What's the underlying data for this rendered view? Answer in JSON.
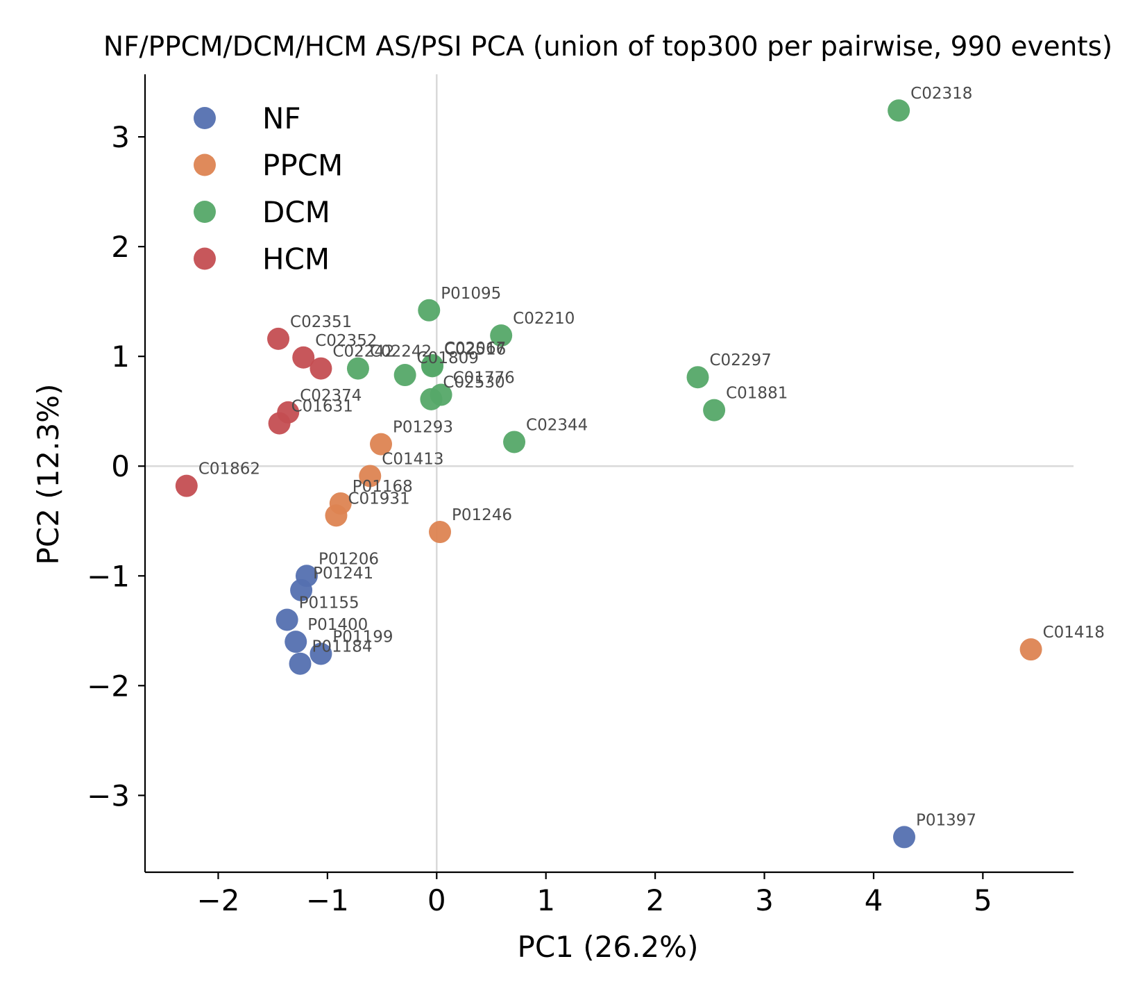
{
  "chart_data": {
    "type": "scatter",
    "title": "NF/PPCM/DCM/HCM AS/PSI PCA (union of top300 per pairwise, 990 events)",
    "xlabel": "PC1 (26.2%)",
    "ylabel": "PC2 (12.3%)",
    "xlim": [
      -2.67,
      5.83
    ],
    "ylim": [
      -3.7,
      3.57
    ],
    "xticks": [
      -2,
      -1,
      0,
      1,
      2,
      3,
      4,
      5
    ],
    "xtick_labels": [
      "−2",
      "−1",
      "0",
      "1",
      "2",
      "3",
      "4",
      "5"
    ],
    "yticks": [
      -3,
      -2,
      -1,
      0,
      1,
      2,
      3
    ],
    "ytick_labels": [
      "−3",
      "−2",
      "−1",
      "0",
      "1",
      "2",
      "3"
    ],
    "grid": false,
    "reference_lines": {
      "x": 0,
      "y": 0,
      "color": "#d9d9d9"
    },
    "legend_position": "top-left",
    "series": [
      {
        "name": "NF",
        "color": "#5470b0",
        "points": [
          {
            "label": "P01206",
            "x": -1.19,
            "y": -1.0
          },
          {
            "label": "P01241",
            "x": -1.24,
            "y": -1.13
          },
          {
            "label": "P01155",
            "x": -1.37,
            "y": -1.4
          },
          {
            "label": "P01400",
            "x": -1.29,
            "y": -1.6
          },
          {
            "label": "P01199",
            "x": -1.06,
            "y": -1.71
          },
          {
            "label": "P01184",
            "x": -1.25,
            "y": -1.8
          },
          {
            "label": "P01397",
            "x": 4.28,
            "y": -3.38
          }
        ]
      },
      {
        "name": "PPCM",
        "color": "#dd8452",
        "points": [
          {
            "label": "P01293",
            "x": -0.51,
            "y": 0.2
          },
          {
            "label": "C01413",
            "x": -0.61,
            "y": -0.09
          },
          {
            "label": "P01168",
            "x": -0.88,
            "y": -0.34
          },
          {
            "label": "C01931",
            "x": -0.92,
            "y": -0.45
          },
          {
            "label": "P01246",
            "x": 0.03,
            "y": -0.6
          },
          {
            "label": "C01418",
            "x": 5.44,
            "y": -1.67
          }
        ]
      },
      {
        "name": "DCM",
        "color": "#55a868",
        "points": [
          {
            "label": "C02318",
            "x": 4.23,
            "y": 3.24
          },
          {
            "label": "P01095",
            "x": -0.07,
            "y": 1.42
          },
          {
            "label": "C02210",
            "x": 0.59,
            "y": 1.19
          },
          {
            "label": "C02242",
            "x": -0.72,
            "y": 0.89
          },
          {
            "label": "C01809",
            "x": -0.29,
            "y": 0.83
          },
          {
            "label": "C02067",
            "x": -0.04,
            "y": 0.92
          },
          {
            "label": "C02516",
            "x": -0.04,
            "y": 0.91
          },
          {
            "label": "C01776",
            "x": 0.04,
            "y": 0.65
          },
          {
            "label": "C02530",
            "x": -0.05,
            "y": 0.61
          },
          {
            "label": "C02297",
            "x": 2.39,
            "y": 0.81
          },
          {
            "label": "C01881",
            "x": 2.54,
            "y": 0.51
          },
          {
            "label": "C02344",
            "x": 0.71,
            "y": 0.22
          }
        ]
      },
      {
        "name": "HCM",
        "color": "#c44e52",
        "points": [
          {
            "label": "C02351",
            "x": -1.45,
            "y": 1.16
          },
          {
            "label": "C02352",
            "x": -1.22,
            "y": 0.99
          },
          {
            "label": "C02242",
            "x": -1.06,
            "y": 0.89
          },
          {
            "label": "C02374",
            "x": -1.36,
            "y": 0.49
          },
          {
            "label": "C01631",
            "x": -1.44,
            "y": 0.39
          },
          {
            "label": "C01862",
            "x": -2.29,
            "y": -0.18
          }
        ]
      }
    ]
  }
}
